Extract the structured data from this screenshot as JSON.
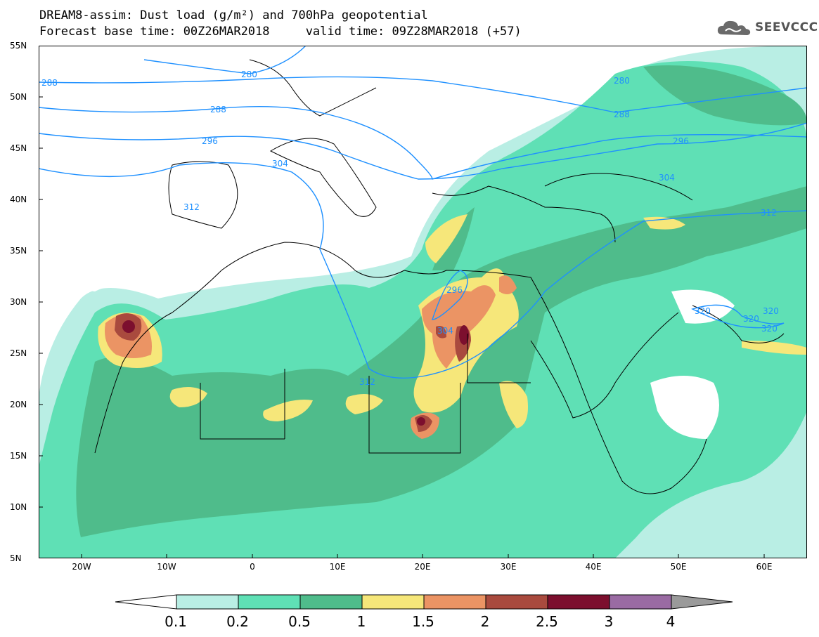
{
  "title": {
    "line1": "DREAM8-assim: Dust load (g/m²) and 700hPa geopotential",
    "line2": "Forecast base time: 00Z26MAR2018     valid time: 09Z28MAR2018 (+57)"
  },
  "logo": {
    "text": "SEEVCCC",
    "icon": "cloud-icon"
  },
  "map": {
    "lon_range": [
      -25,
      65
    ],
    "lat_range": [
      5,
      55
    ],
    "lat_labels": [
      "55N",
      "50N",
      "45N",
      "40N",
      "35N",
      "30N",
      "25N",
      "20N",
      "15N",
      "10N",
      "5N"
    ],
    "lon_labels": [
      "20W",
      "10W",
      "0",
      "10E",
      "20E",
      "30E",
      "40E",
      "50E",
      "60E"
    ],
    "contour_labels": [
      "288",
      "280",
      "288",
      "296",
      "304",
      "312",
      "280",
      "288",
      "296",
      "304",
      "312",
      "296",
      "304",
      "312",
      "320",
      "320",
      "320",
      "320"
    ]
  },
  "legend": {
    "levels": [
      "0.1",
      "0.2",
      "0.5",
      "1",
      "1.5",
      "2",
      "2.5",
      "3",
      "4"
    ],
    "colors": [
      "#b9eee4",
      "#5fe0b5",
      "#4fbc8b",
      "#f6e77a",
      "#eb9464",
      "#a94a3e",
      "#7c0f2e",
      "#9a6ba3"
    ],
    "under_color": "#ffffff",
    "over_color": "#9a9a9a"
  }
}
